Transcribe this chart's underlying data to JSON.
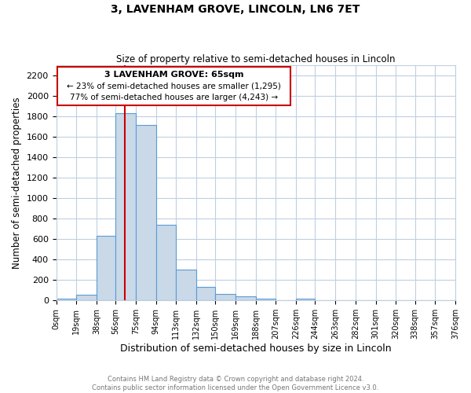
{
  "title": "3, LAVENHAM GROVE, LINCOLN, LN6 7ET",
  "subtitle": "Size of property relative to semi-detached houses in Lincoln",
  "xlabel": "Distribution of semi-detached houses by size in Lincoln",
  "ylabel": "Number of semi-detached properties",
  "bar_color": "#c9d9e8",
  "bar_edge_color": "#5b9bd5",
  "annotation_box_edge": "#cc0000",
  "annotation_text_line1": "3 LAVENHAM GROVE: 65sqm",
  "annotation_text_line2": "← 23% of semi-detached houses are smaller (1,295)",
  "annotation_text_line3": "77% of semi-detached houses are larger (4,243) →",
  "property_line_x": 65,
  "property_line_color": "#cc0000",
  "bin_edges": [
    0,
    19,
    38,
    56,
    75,
    94,
    113,
    132,
    150,
    169,
    188,
    207,
    226,
    244,
    263,
    282,
    301,
    320,
    338,
    357,
    376
  ],
  "bin_labels": [
    "0sqm",
    "19sqm",
    "38sqm",
    "56sqm",
    "75sqm",
    "94sqm",
    "113sqm",
    "132sqm",
    "150sqm",
    "169sqm",
    "188sqm",
    "207sqm",
    "226sqm",
    "244sqm",
    "263sqm",
    "282sqm",
    "301sqm",
    "320sqm",
    "338sqm",
    "357sqm",
    "376sqm"
  ],
  "counts": [
    20,
    60,
    630,
    1830,
    1720,
    740,
    305,
    130,
    65,
    40,
    20,
    0,
    15,
    0,
    0,
    0,
    0,
    0,
    0,
    0
  ],
  "ylim": [
    0,
    2300
  ],
  "yticks": [
    0,
    200,
    400,
    600,
    800,
    1000,
    1200,
    1400,
    1600,
    1800,
    2000,
    2200
  ],
  "footer_line1": "Contains HM Land Registry data © Crown copyright and database right 2024.",
  "footer_line2": "Contains public sector information licensed under the Open Government Licence v3.0.",
  "background_color": "#ffffff",
  "grid_color": "#c0cfe0"
}
